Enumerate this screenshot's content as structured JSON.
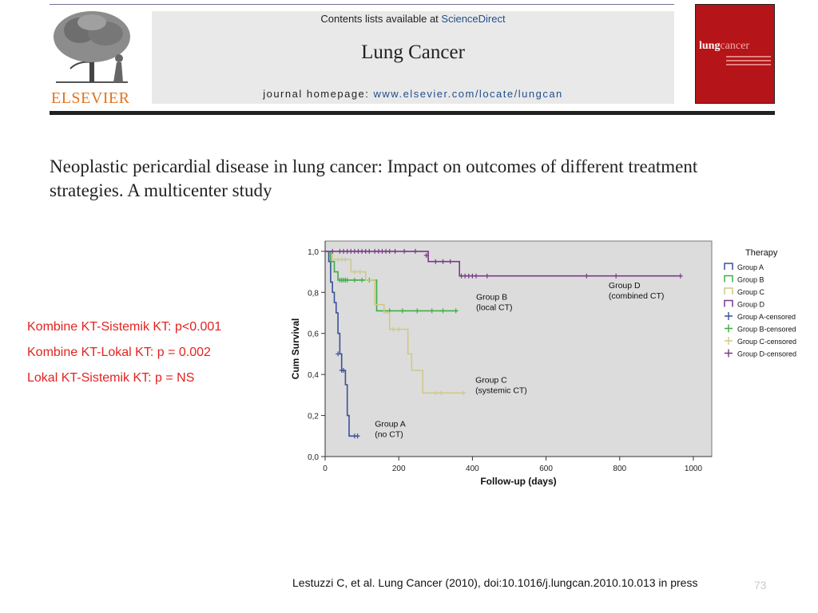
{
  "header": {
    "publisher": "ELSEVIER",
    "contents_prefix": "Contents lists available at ",
    "contents_link": "ScienceDirect",
    "journal_name": "Lung Cancer",
    "homepage_prefix": "journal homepage: ",
    "homepage_url": "www.elsevier.com/locate/lungcan",
    "cover_title_a": "lung",
    "cover_title_b": "cancer"
  },
  "article": {
    "title": "Neoplastic pericardial disease in lung cancer: Impact on outcomes of different treatment strategies. A multicenter study"
  },
  "stats": [
    "Kombine KT-Sistemik KT: p<0.001",
    "Kombine KT-Lokal KT: p = 0.002",
    "Lokal KT-Sistemik KT: p = NS"
  ],
  "citation": "Lestuzzi C, et al. Lung Cancer (2010), doi:10.1016/j.lungcan.2010.10.013 in press",
  "page_number": "73",
  "colors": {
    "accent_red": "#e3231f",
    "elsevier_orange": "#e2731f",
    "group_a": "#3b4f9a",
    "group_b": "#3fae45",
    "group_c": "#cfc98a",
    "group_d": "#7a3a86"
  },
  "chart_data": {
    "type": "line",
    "subtype": "kaplan-meier",
    "xlabel": "Follow-up (days)",
    "ylabel": "Cum Survival",
    "xlim": [
      0,
      1050
    ],
    "ylim": [
      0,
      1.05
    ],
    "xticks": [
      0,
      200,
      400,
      600,
      800,
      1000
    ],
    "xtick_labels": [
      "0",
      "200",
      "400",
      "600",
      "800",
      "1000"
    ],
    "yticks": [
      0,
      0.2,
      0.4,
      0.6,
      0.8,
      1.0
    ],
    "ytick_labels": [
      "0,0",
      "0,2",
      "0,4",
      "0,6",
      "0,8",
      "1,0"
    ],
    "grid": false,
    "legend_title": "Therapy",
    "legend_position": "right",
    "legend": [
      "Group A",
      "Group B",
      "Group C",
      "Group D",
      "Group A-censored",
      "Group B-censored",
      "Group C-censored",
      "Group D-censored"
    ],
    "series": [
      {
        "name": "Group A",
        "color": "#3b4f9a",
        "annotation": [
          "Group A",
          "(no CT)"
        ],
        "annotation_at": [
          135,
          0.145
        ],
        "steps": [
          [
            0,
            1.0
          ],
          [
            10,
            1.0
          ],
          [
            10,
            0.95
          ],
          [
            15,
            0.95
          ],
          [
            15,
            0.85
          ],
          [
            20,
            0.85
          ],
          [
            20,
            0.8
          ],
          [
            25,
            0.8
          ],
          [
            25,
            0.75
          ],
          [
            30,
            0.75
          ],
          [
            30,
            0.7
          ],
          [
            35,
            0.7
          ],
          [
            35,
            0.6
          ],
          [
            40,
            0.6
          ],
          [
            40,
            0.5
          ],
          [
            45,
            0.5
          ],
          [
            45,
            0.42
          ],
          [
            55,
            0.42
          ],
          [
            55,
            0.35
          ],
          [
            60,
            0.35
          ],
          [
            60,
            0.2
          ],
          [
            65,
            0.2
          ],
          [
            65,
            0.1
          ],
          [
            90,
            0.1
          ]
        ],
        "censored": [
          [
            35,
            0.5
          ],
          [
            45,
            0.42
          ],
          [
            50,
            0.42
          ],
          [
            80,
            0.1
          ],
          [
            88,
            0.1
          ]
        ]
      },
      {
        "name": "Group B",
        "color": "#3fae45",
        "annotation": [
          "Group B",
          "(local CT)"
        ],
        "annotation_at": [
          410,
          0.765
        ],
        "steps": [
          [
            0,
            1.0
          ],
          [
            15,
            1.0
          ],
          [
            15,
            0.95
          ],
          [
            25,
            0.95
          ],
          [
            25,
            0.9
          ],
          [
            35,
            0.9
          ],
          [
            35,
            0.86
          ],
          [
            140,
            0.86
          ],
          [
            140,
            0.71
          ],
          [
            360,
            0.71
          ]
        ],
        "censored": [
          [
            40,
            0.86
          ],
          [
            45,
            0.86
          ],
          [
            50,
            0.86
          ],
          [
            55,
            0.86
          ],
          [
            60,
            0.86
          ],
          [
            80,
            0.86
          ],
          [
            100,
            0.86
          ],
          [
            120,
            0.86
          ],
          [
            175,
            0.71
          ],
          [
            210,
            0.71
          ],
          [
            250,
            0.71
          ],
          [
            290,
            0.71
          ],
          [
            320,
            0.71
          ],
          [
            355,
            0.71
          ]
        ]
      },
      {
        "name": "Group C",
        "color": "#cfc98a",
        "annotation": [
          "Group C",
          "(systemic CT)"
        ],
        "annotation_at": [
          408,
          0.36
        ],
        "steps": [
          [
            0,
            1.0
          ],
          [
            20,
            1.0
          ],
          [
            20,
            0.96
          ],
          [
            70,
            0.96
          ],
          [
            70,
            0.9
          ],
          [
            110,
            0.9
          ],
          [
            110,
            0.86
          ],
          [
            135,
            0.86
          ],
          [
            135,
            0.74
          ],
          [
            160,
            0.74
          ],
          [
            160,
            0.7
          ],
          [
            175,
            0.7
          ],
          [
            175,
            0.62
          ],
          [
            225,
            0.62
          ],
          [
            225,
            0.5
          ],
          [
            235,
            0.5
          ],
          [
            235,
            0.42
          ],
          [
            265,
            0.42
          ],
          [
            265,
            0.31
          ],
          [
            380,
            0.31
          ]
        ],
        "censored": [
          [
            35,
            0.96
          ],
          [
            45,
            0.96
          ],
          [
            55,
            0.96
          ],
          [
            80,
            0.9
          ],
          [
            95,
            0.9
          ],
          [
            185,
            0.62
          ],
          [
            200,
            0.62
          ],
          [
            300,
            0.31
          ],
          [
            315,
            0.31
          ],
          [
            375,
            0.31
          ]
        ]
      },
      {
        "name": "Group D",
        "color": "#7a3a86",
        "annotation": [
          "Group D",
          "(combined CT)"
        ],
        "annotation_at": [
          770,
          0.82
        ],
        "steps": [
          [
            0,
            1.0
          ],
          [
            280,
            1.0
          ],
          [
            280,
            0.95
          ],
          [
            365,
            0.95
          ],
          [
            365,
            0.88
          ],
          [
            965,
            0.88
          ]
        ],
        "censored": [
          [
            20,
            1.0
          ],
          [
            40,
            1.0
          ],
          [
            50,
            1.0
          ],
          [
            60,
            1.0
          ],
          [
            70,
            1.0
          ],
          [
            80,
            1.0
          ],
          [
            90,
            1.0
          ],
          [
            100,
            1.0
          ],
          [
            110,
            1.0
          ],
          [
            120,
            1.0
          ],
          [
            135,
            1.0
          ],
          [
            145,
            1.0
          ],
          [
            155,
            1.0
          ],
          [
            165,
            1.0
          ],
          [
            175,
            1.0
          ],
          [
            190,
            1.0
          ],
          [
            215,
            1.0
          ],
          [
            245,
            1.0
          ],
          [
            275,
            0.98
          ],
          [
            300,
            0.95
          ],
          [
            320,
            0.95
          ],
          [
            340,
            0.95
          ],
          [
            370,
            0.88
          ],
          [
            380,
            0.88
          ],
          [
            390,
            0.88
          ],
          [
            400,
            0.88
          ],
          [
            410,
            0.88
          ],
          [
            440,
            0.88
          ],
          [
            710,
            0.88
          ],
          [
            790,
            0.88
          ],
          [
            965,
            0.88
          ]
        ]
      }
    ]
  }
}
